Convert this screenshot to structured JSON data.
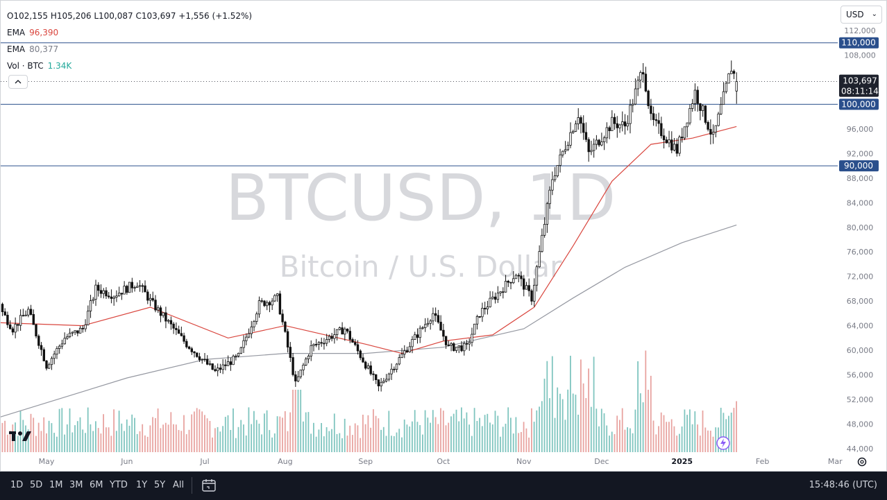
{
  "legend": {
    "ohlc": "O102,155 H105,206 L100,087 C103,697 +1,556 (+1.52%)",
    "ema1_label": "EMA",
    "ema1_value": "96,390",
    "ema2_label": "EMA",
    "ema2_value": "80,377",
    "vol_label": "Vol · BTC",
    "vol_value": "1.34K"
  },
  "currency": "USD",
  "watermark": {
    "symbol": "BTCUSD, 1D",
    "name": "Bitcoin / U.S. Dollar"
  },
  "price_axis": {
    "ticks": [
      "112,000",
      "108,000",
      "96,000",
      "92,000",
      "88,000",
      "84,000",
      "80,000",
      "76,000",
      "72,000",
      "68,000",
      "64,000",
      "60,000",
      "56,000",
      "52,000",
      "48,000",
      "44,000"
    ]
  },
  "time_axis": {
    "ticks": [
      "May",
      "Jun",
      "Jul",
      "Aug",
      "Sep",
      "Oct",
      "Nov",
      "Dec",
      "2025",
      "Feb",
      "Mar"
    ]
  },
  "labels": {
    "level_110": "110,000",
    "level_100": "100,000",
    "level_90": "90,000",
    "last_price": "103,697",
    "countdown": "08:11:14"
  },
  "timeframes": [
    "1D",
    "5D",
    "1M",
    "3M",
    "6M",
    "YTD",
    "1Y",
    "5Y",
    "All"
  ],
  "clock": "15:48:46 (UTC)",
  "colors": {
    "up": "#22a89a",
    "down": "#111111",
    "ema_fast": "#d9453d",
    "ema_slow": "#9598a1",
    "level": "#2a4f8c",
    "vol_up": "#7fc5bf",
    "vol_down": "#e8a3a0"
  },
  "chart_data": {
    "type": "candlestick",
    "title": "BTCUSD, 1D",
    "subtitle": "Bitcoin / U.S. Dollar",
    "ylim": [
      43000,
      113500
    ],
    "x_range": [
      "2024-04-12",
      "2025-03-18"
    ],
    "horizontal_levels": [
      110000,
      100000,
      90000
    ],
    "last_close": 103697,
    "last_ohlc": {
      "open": 102155,
      "high": 105206,
      "low": 100087,
      "close": 103697
    },
    "anchors": [
      {
        "date": "2024-04-12",
        "price": 67500
      },
      {
        "date": "2024-04-18",
        "price": 63500
      },
      {
        "date": "2024-04-24",
        "price": 66500
      },
      {
        "date": "2024-05-01",
        "price": 57500
      },
      {
        "date": "2024-05-08",
        "price": 62000
      },
      {
        "date": "2024-05-15",
        "price": 63500
      },
      {
        "date": "2024-05-20",
        "price": 70000
      },
      {
        "date": "2024-05-27",
        "price": 69000
      },
      {
        "date": "2024-06-05",
        "price": 71000
      },
      {
        "date": "2024-06-11",
        "price": 67500
      },
      {
        "date": "2024-06-24",
        "price": 61000
      },
      {
        "date": "2024-07-05",
        "price": 56500
      },
      {
        "date": "2024-07-14",
        "price": 59000
      },
      {
        "date": "2024-07-22",
        "price": 67500
      },
      {
        "date": "2024-07-29",
        "price": 68500
      },
      {
        "date": "2024-08-05",
        "price": 54500
      },
      {
        "date": "2024-08-11",
        "price": 60500
      },
      {
        "date": "2024-08-24",
        "price": 63500
      },
      {
        "date": "2024-09-06",
        "price": 54000
      },
      {
        "date": "2024-09-12",
        "price": 57500
      },
      {
        "date": "2024-09-27",
        "price": 66000
      },
      {
        "date": "2024-10-03",
        "price": 60500
      },
      {
        "date": "2024-10-10",
        "price": 60500
      },
      {
        "date": "2024-10-15",
        "price": 66000
      },
      {
        "date": "2024-10-29",
        "price": 72500
      },
      {
        "date": "2024-11-04",
        "price": 68500
      },
      {
        "date": "2024-11-12",
        "price": 88000
      },
      {
        "date": "2024-11-22",
        "price": 98500
      },
      {
        "date": "2024-11-26",
        "price": 92000
      },
      {
        "date": "2024-12-05",
        "price": 97000
      },
      {
        "date": "2024-12-10",
        "price": 96500
      },
      {
        "date": "2024-12-17",
        "price": 106000
      },
      {
        "date": "2024-12-20",
        "price": 97500
      },
      {
        "date": "2024-12-30",
        "price": 92500
      },
      {
        "date": "2025-01-06",
        "price": 102000
      },
      {
        "date": "2025-01-13",
        "price": 94500
      },
      {
        "date": "2025-01-20",
        "price": 106000
      },
      {
        "date": "2025-01-22",
        "price": 103697
      }
    ],
    "ema_fast": [
      {
        "date": "2024-04-12",
        "value": 64500
      },
      {
        "date": "2024-05-15",
        "value": 64000
      },
      {
        "date": "2024-06-10",
        "value": 67000
      },
      {
        "date": "2024-07-10",
        "value": 62000
      },
      {
        "date": "2024-08-01",
        "value": 64000
      },
      {
        "date": "2024-09-01",
        "value": 61000
      },
      {
        "date": "2024-09-15",
        "value": 59500
      },
      {
        "date": "2024-10-01",
        "value": 61500
      },
      {
        "date": "2024-10-20",
        "value": 62500
      },
      {
        "date": "2024-11-05",
        "value": 67000
      },
      {
        "date": "2024-11-20",
        "value": 77000
      },
      {
        "date": "2024-12-05",
        "value": 87500
      },
      {
        "date": "2024-12-20",
        "value": 93500
      },
      {
        "date": "2025-01-05",
        "value": 94500
      },
      {
        "date": "2025-01-22",
        "value": 96390
      }
    ],
    "ema_slow": [
      {
        "date": "2024-04-12",
        "value": 49000
      },
      {
        "date": "2024-06-01",
        "value": 55500
      },
      {
        "date": "2024-07-01",
        "value": 58500
      },
      {
        "date": "2024-08-01",
        "value": 59500
      },
      {
        "date": "2024-09-01",
        "value": 59500
      },
      {
        "date": "2024-10-01",
        "value": 60500
      },
      {
        "date": "2024-11-01",
        "value": 63500
      },
      {
        "date": "2024-11-20",
        "value": 68500
      },
      {
        "date": "2024-12-10",
        "value": 73500
      },
      {
        "date": "2025-01-01",
        "value": 77500
      },
      {
        "date": "2025-01-22",
        "value": 80377
      }
    ]
  }
}
